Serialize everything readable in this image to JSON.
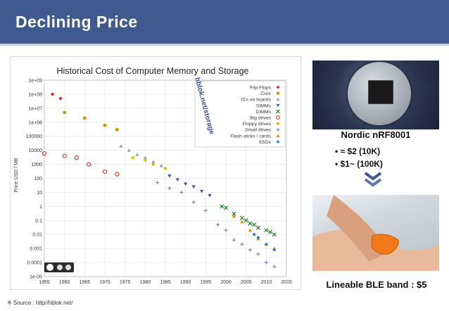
{
  "slide": {
    "title": "Declining Price",
    "source": "※ Source : http//hblok.net/"
  },
  "chart_data": {
    "type": "scatter",
    "title": "Historical Cost of Computer Memory and Storage",
    "ylabel": "Price USD / MB",
    "xlabel": "",
    "watermark": "hblok.net/storage",
    "y_scale": "log",
    "xlim": [
      1955,
      2015
    ],
    "ylim": [
      1e-05,
      1000000000.0
    ],
    "x_ticks": [
      "1955",
      "1960",
      "1965",
      "1970",
      "1975",
      "1980",
      "1985",
      "1990",
      "1995",
      "2000",
      "2005",
      "2010",
      "2015"
    ],
    "y_ticks": [
      "1e+09",
      "1e+08",
      "1e+07",
      "1e+06",
      "100000",
      "10000",
      "1000",
      "100",
      "10",
      "1",
      "0.1",
      "0.01",
      "0.001",
      "0.0001",
      "1e-05"
    ],
    "grid": true,
    "legend_position": "top-right",
    "series": [
      {
        "name": "Flip-Flops",
        "marker": "diamond",
        "color": "#e41a1c",
        "points": [
          [
            1957,
            100000000.0
          ],
          [
            1959,
            50000000.0
          ]
        ]
      },
      {
        "name": "Core",
        "marker": "square",
        "color": "#d08a00",
        "points": [
          [
            1960,
            5000000.0
          ],
          [
            1965,
            2000000.0
          ],
          [
            1970,
            600000.0
          ],
          [
            1973,
            300000.0
          ]
        ]
      },
      {
        "name": "ICs on boards",
        "marker": "triangle",
        "color": "#8da0cb",
        "points": [
          [
            1974,
            20000.0
          ],
          [
            1976,
            10000.0
          ],
          [
            1978,
            5000.0
          ],
          [
            1980,
            3000.0
          ],
          [
            1982,
            1500.0
          ],
          [
            1984,
            800
          ]
        ]
      },
      {
        "name": "SIMMs",
        "marker": "triangle-down",
        "color": "#3c5a9a",
        "points": [
          [
            1986,
            150
          ],
          [
            1988,
            80
          ],
          [
            1990,
            40
          ],
          [
            1992,
            25
          ],
          [
            1994,
            12
          ],
          [
            1996,
            6
          ]
        ]
      },
      {
        "name": "DIMMs",
        "marker": "x",
        "color": "#1a7a1a",
        "points": [
          [
            1999,
            1
          ],
          [
            2000,
            0.8
          ],
          [
            2002,
            0.3
          ],
          [
            2004,
            0.15
          ],
          [
            2005,
            0.1
          ],
          [
            2006,
            0.06
          ],
          [
            2007,
            0.05
          ],
          [
            2008,
            0.03
          ],
          [
            2010,
            0.02
          ],
          [
            2011,
            0.015
          ],
          [
            2012,
            0.01
          ]
        ]
      },
      {
        "name": "Big drives",
        "marker": "circle-open",
        "color": "#e41a1c",
        "points": [
          [
            1955,
            6000
          ],
          [
            1960,
            4000
          ],
          [
            1963,
            3000
          ],
          [
            1966,
            1000
          ],
          [
            1970,
            300
          ],
          [
            1973,
            200
          ]
        ]
      },
      {
        "name": "Floppy drives",
        "marker": "asterisk",
        "color": "#d0c000",
        "points": [
          [
            1977,
            3000
          ],
          [
            1980,
            2000
          ],
          [
            1982,
            1000
          ],
          [
            1985,
            500
          ]
        ]
      },
      {
        "name": "Small drives",
        "marker": "plus",
        "color": "#6a84b8",
        "points": [
          [
            1983,
            50
          ],
          [
            1986,
            20
          ],
          [
            1989,
            10
          ],
          [
            1992,
            2
          ],
          [
            1995,
            0.5
          ],
          [
            1998,
            0.05
          ],
          [
            2000,
            0.02
          ],
          [
            2002,
            0.004
          ],
          [
            2004,
            0.002
          ],
          [
            2006,
            0.0008
          ],
          [
            2008,
            0.0004
          ],
          [
            2010,
            0.0001
          ],
          [
            2012,
            5e-05
          ]
        ]
      },
      {
        "name": "Flash sticks / cards",
        "marker": "triangle",
        "color": "#e08a00",
        "points": [
          [
            2002,
            0.2
          ],
          [
            2004,
            0.08
          ],
          [
            2006,
            0.02
          ],
          [
            2008,
            0.005
          ],
          [
            2010,
            0.002
          ],
          [
            2012,
            0.001
          ]
        ]
      },
      {
        "name": "SSDs",
        "marker": "dot",
        "color": "#377eb8",
        "points": [
          [
            2007,
            0.01
          ],
          [
            2008,
            0.006
          ],
          [
            2010,
            0.002
          ],
          [
            2012,
            0.0008
          ]
        ]
      }
    ]
  },
  "chip": {
    "title": "Nordic nRF8001",
    "prices": [
      "• ≈ $2 (10K)",
      "• $1~ (100K)"
    ]
  },
  "band": {
    "caption": "Lineable BLE band : $5"
  }
}
